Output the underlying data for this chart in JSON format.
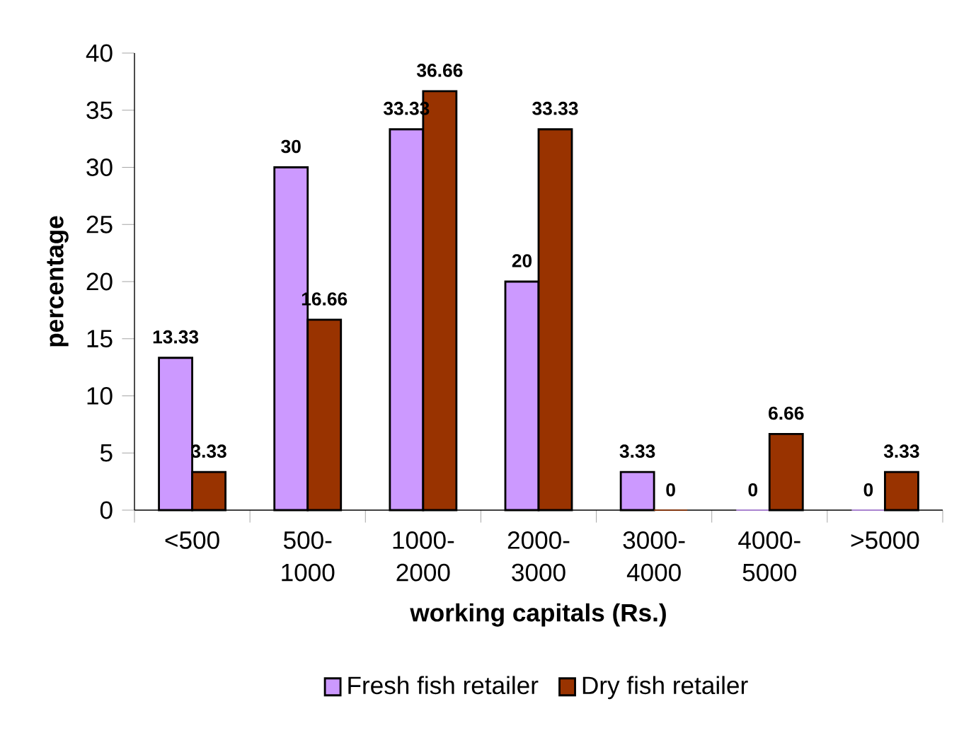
{
  "chart_data": {
    "type": "bar",
    "xlabel": "working capitals (Rs.)",
    "ylabel": "percentage",
    "categories": [
      "<500",
      "500-1000",
      "1000-2000",
      "2000-3000",
      "3000-4000",
      "4000-5000",
      ">5000"
    ],
    "series": [
      {
        "name": "Fresh fish retailer",
        "color": "#cc99ff",
        "values": [
          13.33,
          30,
          33.33,
          20,
          3.33,
          0,
          0
        ]
      },
      {
        "name": "Dry fish retailer",
        "color": "#993300",
        "values": [
          3.33,
          16.66,
          36.66,
          33.33,
          0,
          6.66,
          3.33
        ]
      }
    ],
    "ylim": [
      0,
      40
    ],
    "yticks": [
      0,
      5,
      10,
      15,
      20,
      25,
      30,
      35,
      40
    ],
    "data_labels": true,
    "legend": "bottom",
    "grid": false
  }
}
